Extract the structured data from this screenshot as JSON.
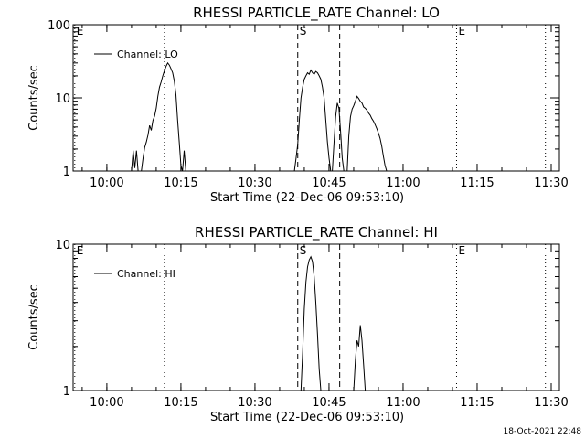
{
  "chart_data": [
    {
      "type": "line",
      "title": "RHESSI PARTICLE_RATE Channel: LO",
      "xlabel": "Start Time (22-Dec-06 09:53:10)",
      "ylabel": "Counts/sec",
      "yscale": "log",
      "ylim": [
        1,
        100
      ],
      "xlim": [
        "09:53:10",
        "11:31:40"
      ],
      "x_ticks": [
        "10:00",
        "10:15",
        "10:30",
        "10:45",
        "11:00",
        "11:15",
        "11:30"
      ],
      "y_ticks": [
        "1",
        "10",
        "100"
      ],
      "legend": "Channel: LO",
      "legend_position": "top-left",
      "markers": [
        {
          "label": "E",
          "time": "09:53:30",
          "style": "dotted"
        },
        {
          "label": "",
          "time": "10:11:40",
          "style": "dotted"
        },
        {
          "label": "S",
          "time": "10:38:40",
          "style": "dashed"
        },
        {
          "label": "",
          "time": "10:47:10",
          "style": "dashed"
        },
        {
          "label": "E",
          "time": "11:10:50",
          "style": "dotted"
        },
        {
          "label": "",
          "time": "11:28:50",
          "style": "dotted"
        }
      ],
      "segments": [
        [
          [
            "10:05:00",
            1
          ],
          [
            "10:05:20",
            1.9
          ],
          [
            "10:05:40",
            1.1
          ],
          [
            "10:06:00",
            1.9
          ],
          [
            "10:06:20",
            1
          ],
          [
            "10:07:00",
            1
          ],
          [
            "10:07:20",
            1.5
          ],
          [
            "10:07:40",
            2.1
          ],
          [
            "10:08:00",
            2.5
          ],
          [
            "10:08:20",
            3.1
          ],
          [
            "10:08:40",
            4.2
          ],
          [
            "10:09:00",
            3.6
          ],
          [
            "10:09:20",
            4.9
          ],
          [
            "10:09:40",
            5.6
          ],
          [
            "10:10:00",
            7.2
          ],
          [
            "10:10:20",
            10.5
          ],
          [
            "10:10:40",
            14
          ],
          [
            "10:11:00",
            16.5
          ],
          [
            "10:11:20",
            20
          ],
          [
            "10:11:40",
            23.5
          ],
          [
            "10:12:00",
            27
          ],
          [
            "10:12:20",
            30
          ],
          [
            "10:12:40",
            28
          ],
          [
            "10:13:00",
            25
          ],
          [
            "10:13:20",
            22
          ],
          [
            "10:13:40",
            17
          ],
          [
            "10:14:00",
            11
          ],
          [
            "10:14:20",
            5
          ],
          [
            "10:14:40",
            2.5
          ],
          [
            "10:15:00",
            1.2
          ],
          [
            "10:15:20",
            1
          ],
          [
            "10:15:40",
            1.9
          ],
          [
            "10:16:00",
            1
          ]
        ],
        [
          [
            "10:38:00",
            1
          ],
          [
            "10:38:20",
            1.5
          ],
          [
            "10:38:40",
            2.3
          ],
          [
            "10:39:00",
            5
          ],
          [
            "10:39:20",
            10
          ],
          [
            "10:39:40",
            14
          ],
          [
            "10:40:00",
            18
          ],
          [
            "10:40:20",
            20
          ],
          [
            "10:40:40",
            22
          ],
          [
            "10:41:00",
            21
          ],
          [
            "10:41:20",
            24
          ],
          [
            "10:41:40",
            22
          ],
          [
            "10:42:00",
            21
          ],
          [
            "10:42:20",
            23
          ],
          [
            "10:42:40",
            22
          ],
          [
            "10:43:00",
            20
          ],
          [
            "10:43:20",
            18
          ],
          [
            "10:43:40",
            14
          ],
          [
            "10:44:00",
            10
          ],
          [
            "10:44:20",
            5
          ],
          [
            "10:44:40",
            2.5
          ],
          [
            "10:45:00",
            1.5
          ],
          [
            "10:45:20",
            1
          ]
        ],
        [
          [
            "10:45:40",
            1
          ],
          [
            "10:46:00",
            2.4
          ],
          [
            "10:46:20",
            5.5
          ],
          [
            "10:46:40",
            8.5
          ],
          [
            "10:47:00",
            7.2
          ],
          [
            "10:47:20",
            3.5
          ],
          [
            "10:47:40",
            1.5
          ],
          [
            "10:48:00",
            1
          ]
        ],
        [
          [
            "10:48:40",
            1
          ],
          [
            "10:49:00",
            3
          ],
          [
            "10:49:20",
            5.5
          ],
          [
            "10:49:40",
            7
          ],
          [
            "10:50:00",
            7.8
          ],
          [
            "10:50:20",
            9
          ],
          [
            "10:50:40",
            10.5
          ],
          [
            "10:51:00",
            9.8
          ],
          [
            "10:51:20",
            9
          ],
          [
            "10:51:40",
            8.5
          ],
          [
            "10:52:00",
            7.5
          ],
          [
            "10:52:20",
            7.2
          ],
          [
            "10:52:40",
            6.8
          ],
          [
            "10:53:00",
            6.2
          ],
          [
            "10:53:20",
            5.8
          ],
          [
            "10:53:40",
            5.2
          ],
          [
            "10:54:00",
            4.8
          ],
          [
            "10:54:20",
            4.3
          ],
          [
            "10:54:40",
            3.8
          ],
          [
            "10:55:00",
            3.3
          ],
          [
            "10:55:20",
            2.8
          ],
          [
            "10:55:40",
            2.2
          ],
          [
            "10:56:00",
            1.6
          ],
          [
            "10:56:20",
            1.2
          ],
          [
            "10:56:40",
            1
          ]
        ]
      ]
    },
    {
      "type": "line",
      "title": "RHESSI PARTICLE_RATE Channel: HI",
      "xlabel": "Start Time (22-Dec-06 09:53:10)",
      "ylabel": "Counts/sec",
      "yscale": "log",
      "ylim": [
        1,
        10
      ],
      "xlim": [
        "09:53:10",
        "11:31:40"
      ],
      "x_ticks": [
        "10:00",
        "10:15",
        "10:30",
        "10:45",
        "11:00",
        "11:15",
        "11:30"
      ],
      "y_ticks": [
        "1",
        "10"
      ],
      "legend": "Channel: HI",
      "legend_position": "top-left",
      "markers": [
        {
          "label": "E",
          "time": "09:53:30",
          "style": "dotted"
        },
        {
          "label": "",
          "time": "10:11:40",
          "style": "dotted"
        },
        {
          "label": "S",
          "time": "10:38:40",
          "style": "dashed"
        },
        {
          "label": "",
          "time": "10:47:10",
          "style": "dashed"
        },
        {
          "label": "E",
          "time": "11:10:50",
          "style": "dotted"
        },
        {
          "label": "",
          "time": "11:28:50",
          "style": "dotted"
        }
      ],
      "segments": [
        [
          [
            "10:39:20",
            1
          ],
          [
            "10:39:40",
            1.8
          ],
          [
            "10:40:00",
            3.6
          ],
          [
            "10:40:20",
            5.5
          ],
          [
            "10:40:40",
            7.0
          ],
          [
            "10:41:00",
            7.8
          ],
          [
            "10:41:20",
            8.2
          ],
          [
            "10:41:40",
            7.6
          ],
          [
            "10:42:00",
            6.0
          ],
          [
            "10:42:20",
            4.0
          ],
          [
            "10:42:40",
            2.4
          ],
          [
            "10:43:00",
            1.4
          ],
          [
            "10:43:20",
            1
          ]
        ],
        [
          [
            "10:50:00",
            1
          ],
          [
            "10:50:20",
            1.6
          ],
          [
            "10:50:40",
            2.2
          ],
          [
            "10:51:00",
            2.0
          ],
          [
            "10:51:20",
            2.8
          ],
          [
            "10:51:40",
            2.2
          ],
          [
            "10:52:00",
            1.5
          ],
          [
            "10:52:20",
            1
          ]
        ]
      ]
    }
  ],
  "timestamp": "18-Oct-2021 22:48"
}
